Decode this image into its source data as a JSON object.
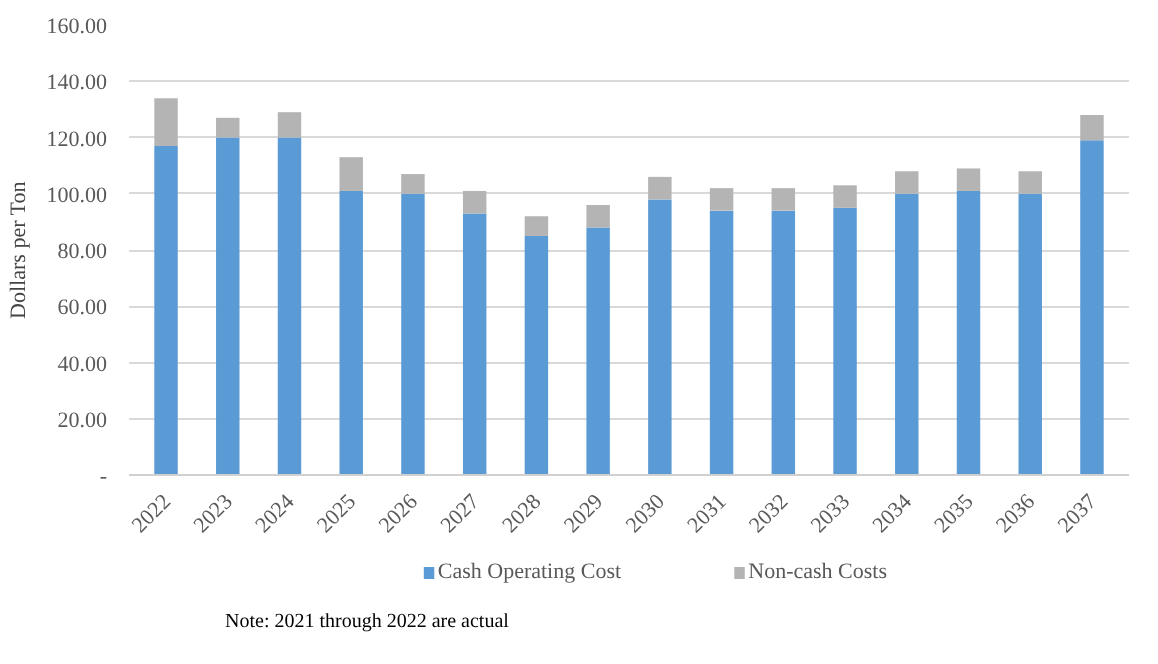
{
  "chart_data": {
    "type": "bar",
    "stacked": true,
    "ylabel": "Dollars per Ton",
    "categories": [
      "2022",
      "2023",
      "2024",
      "2025",
      "2026",
      "2027",
      "2028",
      "2029",
      "2030",
      "2031",
      "2032",
      "2033",
      "2034",
      "2035",
      "2036",
      "2037"
    ],
    "series": [
      {
        "name": "Cash Operating Cost",
        "color": "#5b9bd5",
        "values": [
          117,
          120,
          120,
          101,
          100,
          93,
          85,
          88,
          98,
          94,
          94,
          95,
          100,
          101,
          100,
          119
        ]
      },
      {
        "name": "Non-cash Costs",
        "color": "#b4b4b4",
        "values": [
          17,
          7,
          9,
          12,
          7,
          8,
          7,
          8,
          8,
          8,
          8,
          8,
          8,
          8,
          8,
          9
        ]
      }
    ],
    "ylim": [
      0,
      160
    ],
    "yticks": [
      {
        "value": 0,
        "label": "-"
      },
      {
        "value": 20,
        "label": "20.00"
      },
      {
        "value": 40,
        "label": "40.00"
      },
      {
        "value": 60,
        "label": "60.00"
      },
      {
        "value": 80,
        "label": "80.00"
      },
      {
        "value": 100,
        "label": "100.00"
      },
      {
        "value": 120,
        "label": "120.00"
      },
      {
        "value": 140,
        "label": "140.00"
      },
      {
        "value": 160,
        "label": "160.00"
      }
    ],
    "grid": "y",
    "legend": "bottom",
    "annotations": [
      "Note: 2021 through 2022 are actual"
    ]
  }
}
